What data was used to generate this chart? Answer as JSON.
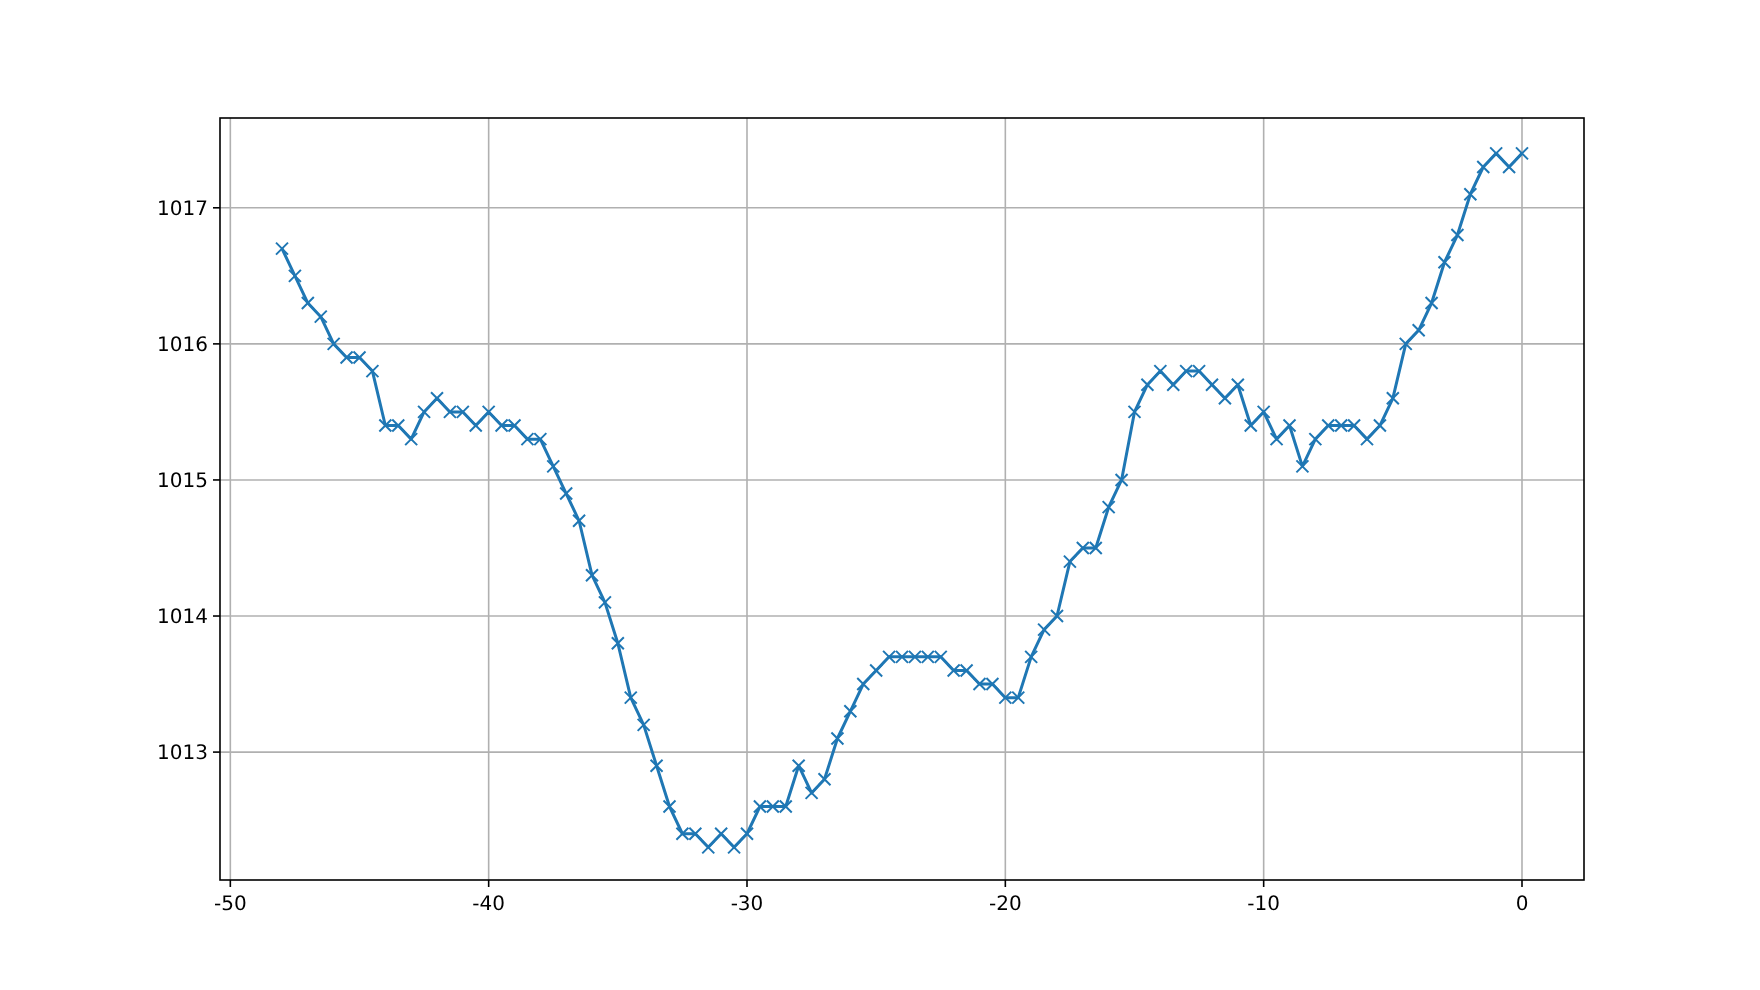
{
  "chart_data": {
    "type": "line",
    "x": [
      -48,
      -47.5,
      -47,
      -46.5,
      -46,
      -45.5,
      -45,
      -44.5,
      -44,
      -43.5,
      -43,
      -42.5,
      -42,
      -41.5,
      -41,
      -40.5,
      -40,
      -39.5,
      -39,
      -38.5,
      -38,
      -37.5,
      -37,
      -36.5,
      -36,
      -35.5,
      -35,
      -34.5,
      -34,
      -33.5,
      -33,
      -32.5,
      -32,
      -31.5,
      -31,
      -30.5,
      -30,
      -29.5,
      -29,
      -28.5,
      -28,
      -27.5,
      -27,
      -26.5,
      -26,
      -25.5,
      -25,
      -24.5,
      -24,
      -23.5,
      -23,
      -22.5,
      -22,
      -21.5,
      -21,
      -20.5,
      -20,
      -19.5,
      -19,
      -18.5,
      -18,
      -17.5,
      -17,
      -16.5,
      -16,
      -15.5,
      -15,
      -14.5,
      -14,
      -13.5,
      -13,
      -12.5,
      -12,
      -11.5,
      -11,
      -10.5,
      -10,
      -9.5,
      -9,
      -8.5,
      -8,
      -7.5,
      -7,
      -6.5,
      -6,
      -5.5,
      -5,
      -4.5,
      -4,
      -3.5,
      -3,
      -2.5,
      -2,
      -1.5,
      -1,
      -0.5,
      0
    ],
    "series": [
      {
        "color": "#1f77b4",
        "values": [
          1016.7,
          1016.5,
          1016.3,
          1016.2,
          1016.0,
          1015.9,
          1015.9,
          1015.8,
          1015.4,
          1015.4,
          1015.3,
          1015.5,
          1015.6,
          1015.5,
          1015.5,
          1015.4,
          1015.5,
          1015.4,
          1015.4,
          1015.3,
          1015.3,
          1015.1,
          1014.9,
          1014.7,
          1014.3,
          1014.1,
          1013.8,
          1013.4,
          1013.2,
          1012.9,
          1012.6,
          1012.4,
          1012.4,
          1012.3,
          1012.4,
          1012.3,
          1012.4,
          1012.6,
          1012.6,
          1012.6,
          1012.9,
          1012.7,
          1012.8,
          1013.1,
          1013.3,
          1013.5,
          1013.6,
          1013.7,
          1013.7,
          1013.7,
          1013.7,
          1013.7,
          1013.6,
          1013.6,
          1013.5,
          1013.5,
          1013.4,
          1013.4,
          1013.7,
          1013.9,
          1014.0,
          1014.4,
          1014.5,
          1014.5,
          1014.8,
          1015.0,
          1015.5,
          1015.7,
          1015.8,
          1015.7,
          1015.8,
          1015.8,
          1015.7,
          1015.6,
          1015.7,
          1015.4,
          1015.5,
          1015.3,
          1015.4,
          1015.1,
          1015.3,
          1015.4,
          1015.4,
          1015.4,
          1015.3,
          1015.4,
          1015.6,
          1016.0,
          1016.1,
          1016.3,
          1016.6,
          1016.8,
          1017.1,
          1017.3,
          1017.4,
          1017.3,
          1017.4
        ]
      }
    ],
    "xlim": [
      -50.4,
      2.4
    ],
    "ylim": [
      1012.06,
      1017.66
    ],
    "xticks": [
      -50,
      -40,
      -30,
      -20,
      -10,
      0
    ],
    "yticks": [
      1013,
      1014,
      1015,
      1016,
      1017
    ],
    "grid": true,
    "marker": "cross",
    "line_style": "solid"
  }
}
